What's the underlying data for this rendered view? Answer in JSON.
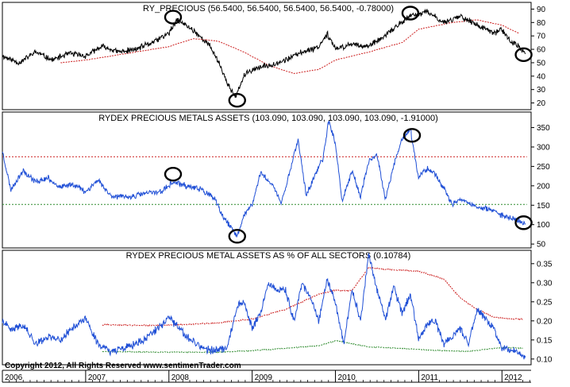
{
  "footer": {
    "copyright": "Copyright 2012, All Rights Reserved  www.sentimenTrader.com"
  },
  "x_axis": {
    "labels": [
      "2006",
      "2007",
      "2008",
      "2009",
      "2010",
      "2011",
      "2012"
    ],
    "range": [
      2006.0,
      2012.35
    ]
  },
  "colors": {
    "price": "#000000",
    "assets": "#1f4fd6",
    "upper_band": "#cc1f1f",
    "lower_band": "#2e8b2e",
    "circle": "#000000"
  },
  "chart_data": [
    {
      "type": "line",
      "title": "RY_PRECIOUS (56.5400, 56.5400, 56.5400, 56.5400, -0.78000)",
      "y_range": [
        15,
        95
      ],
      "y_ticks": [
        20,
        30,
        40,
        50,
        60,
        70,
        80,
        90
      ],
      "grid": false,
      "series": [
        {
          "x": [
            2006.0,
            2006.2,
            2006.4,
            2006.6,
            2006.8,
            2007.0,
            2007.2,
            2007.4,
            2007.6,
            2007.8,
            2008.0,
            2008.1,
            2008.3,
            2008.5,
            2008.6,
            2008.7,
            2008.8,
            2008.9,
            2009.0,
            2009.2,
            2009.4,
            2009.6,
            2009.8,
            2009.9,
            2010.0,
            2010.2,
            2010.4,
            2010.6,
            2010.75,
            2010.9,
            2011.0,
            2011.1,
            2011.3,
            2011.5,
            2011.7,
            2011.9,
            2012.0,
            2012.1,
            2012.2,
            2012.28
          ],
          "values": [
            55,
            50,
            58,
            52,
            57,
            55,
            62,
            58,
            60,
            65,
            72,
            82,
            74,
            62,
            50,
            35,
            24,
            40,
            45,
            48,
            52,
            58,
            62,
            72,
            60,
            64,
            62,
            70,
            78,
            85,
            86,
            88,
            80,
            85,
            78,
            72,
            75,
            66,
            62,
            56.54
          ]
        },
        {
          "x": [
            2006.7,
            2007.0,
            2007.3,
            2007.6,
            2008.0,
            2008.3,
            2008.6,
            2008.9,
            2009.2,
            2009.5,
            2009.8,
            2010.0,
            2010.4,
            2010.8,
            2011.0,
            2011.4,
            2011.7,
            2012.0,
            2012.2
          ],
          "values": [
            50,
            52,
            55,
            58,
            62,
            68,
            66,
            58,
            48,
            42,
            45,
            52,
            58,
            65,
            75,
            80,
            82,
            78,
            72
          ]
        }
      ],
      "annotations": [
        {
          "shape": "circle",
          "x": 2008.05,
          "y": 84
        },
        {
          "shape": "circle",
          "x": 2008.82,
          "y": 22
        },
        {
          "shape": "circle",
          "x": 2010.9,
          "y": 87
        },
        {
          "shape": "circle",
          "x": 2012.26,
          "y": 56
        }
      ]
    },
    {
      "type": "line",
      "title": "RYDEX PRECIOUS METALS ASSETS (103.090, 103.090, 103.090, 103.090, -1.91000)",
      "y_range": [
        40,
        390
      ],
      "y_ticks": [
        50,
        100,
        150,
        200,
        250,
        300,
        350
      ],
      "grid": false,
      "series": [
        {
          "x": [
            2006.0,
            2006.1,
            2006.25,
            2006.4,
            2006.55,
            2006.7,
            2006.85,
            2007.0,
            2007.15,
            2007.3,
            2007.5,
            2007.7,
            2007.9,
            2008.0,
            2008.05,
            2008.2,
            2008.4,
            2008.55,
            2008.65,
            2008.75,
            2008.82,
            2008.9,
            2009.0,
            2009.1,
            2009.25,
            2009.35,
            2009.45,
            2009.55,
            2009.65,
            2009.75,
            2009.85,
            2009.92,
            2010.0,
            2010.08,
            2010.2,
            2010.3,
            2010.4,
            2010.5,
            2010.6,
            2010.7,
            2010.8,
            2010.9,
            2011.0,
            2011.1,
            2011.2,
            2011.3,
            2011.4,
            2011.5,
            2011.7,
            2011.9,
            2012.0,
            2012.1,
            2012.2,
            2012.28
          ],
          "values": [
            290,
            190,
            240,
            210,
            220,
            195,
            205,
            185,
            215,
            175,
            170,
            180,
            185,
            200,
            210,
            200,
            190,
            165,
            120,
            90,
            70,
            125,
            150,
            235,
            200,
            155,
            235,
            320,
            175,
            225,
            270,
            370,
            310,
            160,
            240,
            170,
            265,
            280,
            165,
            250,
            320,
            345,
            220,
            245,
            230,
            195,
            150,
            165,
            145,
            135,
            125,
            118,
            112,
            103.09
          ]
        },
        {
          "x": [
            2006.0,
            2012.3
          ],
          "values": [
            275,
            275
          ]
        },
        {
          "x": [
            2006.0,
            2012.3
          ],
          "values": [
            152,
            152
          ]
        }
      ],
      "annotations": [
        {
          "shape": "circle",
          "x": 2008.05,
          "y": 230
        },
        {
          "shape": "circle",
          "x": 2008.82,
          "y": 70
        },
        {
          "shape": "circle",
          "x": 2010.92,
          "y": 330
        },
        {
          "shape": "circle",
          "x": 2012.26,
          "y": 105
        }
      ]
    },
    {
      "type": "line",
      "title": "RYDEX PRECIOUS METAL ASSETS AS % OF ALL SECTORS (0.10784)",
      "y_range": [
        0.085,
        0.385
      ],
      "y_ticks": [
        0.1,
        0.15,
        0.2,
        0.25,
        0.3,
        0.35
      ],
      "grid": false,
      "series": [
        {
          "x": [
            2006.0,
            2006.1,
            2006.25,
            2006.4,
            2006.55,
            2006.7,
            2006.85,
            2007.0,
            2007.15,
            2007.3,
            2007.5,
            2007.7,
            2007.9,
            2008.0,
            2008.1,
            2008.2,
            2008.4,
            2008.55,
            2008.7,
            2008.82,
            2008.9,
            2009.0,
            2009.1,
            2009.2,
            2009.3,
            2009.4,
            2009.5,
            2009.6,
            2009.7,
            2009.8,
            2009.9,
            2010.0,
            2010.1,
            2010.2,
            2010.3,
            2010.4,
            2010.5,
            2010.6,
            2010.7,
            2010.8,
            2010.9,
            2011.0,
            2011.1,
            2011.2,
            2011.3,
            2011.4,
            2011.5,
            2011.6,
            2011.7,
            2011.9,
            2012.0,
            2012.1,
            2012.2,
            2012.28
          ],
          "values": [
            0.2,
            0.175,
            0.19,
            0.14,
            0.16,
            0.15,
            0.185,
            0.205,
            0.14,
            0.12,
            0.13,
            0.15,
            0.185,
            0.21,
            0.185,
            0.16,
            0.13,
            0.12,
            0.13,
            0.24,
            0.25,
            0.18,
            0.22,
            0.3,
            0.28,
            0.28,
            0.2,
            0.3,
            0.26,
            0.2,
            0.31,
            0.25,
            0.14,
            0.28,
            0.2,
            0.375,
            0.28,
            0.2,
            0.29,
            0.22,
            0.27,
            0.15,
            0.19,
            0.2,
            0.14,
            0.16,
            0.18,
            0.14,
            0.23,
            0.18,
            0.13,
            0.125,
            0.115,
            0.10784
          ]
        },
        {
          "x": [
            2007.2,
            2007.8,
            2008.2,
            2008.6,
            2009.0,
            2009.4,
            2009.8,
            2010.0,
            2010.2,
            2010.4,
            2010.6,
            2011.0,
            2011.3,
            2011.5,
            2011.7,
            2011.9,
            2012.1,
            2012.25
          ],
          "values": [
            0.19,
            0.188,
            0.19,
            0.195,
            0.205,
            0.23,
            0.27,
            0.28,
            0.28,
            0.34,
            0.335,
            0.33,
            0.31,
            0.26,
            0.23,
            0.21,
            0.205,
            0.205
          ]
        },
        {
          "x": [
            2007.2,
            2007.8,
            2008.2,
            2008.6,
            2009.0,
            2009.4,
            2009.8,
            2010.0,
            2010.2,
            2010.4,
            2010.6,
            2011.0,
            2011.3,
            2011.6,
            2011.9,
            2012.1,
            2012.25
          ],
          "values": [
            0.12,
            0.118,
            0.118,
            0.118,
            0.122,
            0.128,
            0.135,
            0.148,
            0.14,
            0.132,
            0.13,
            0.125,
            0.122,
            0.12,
            0.128,
            0.13,
            0.128
          ]
        }
      ]
    }
  ]
}
